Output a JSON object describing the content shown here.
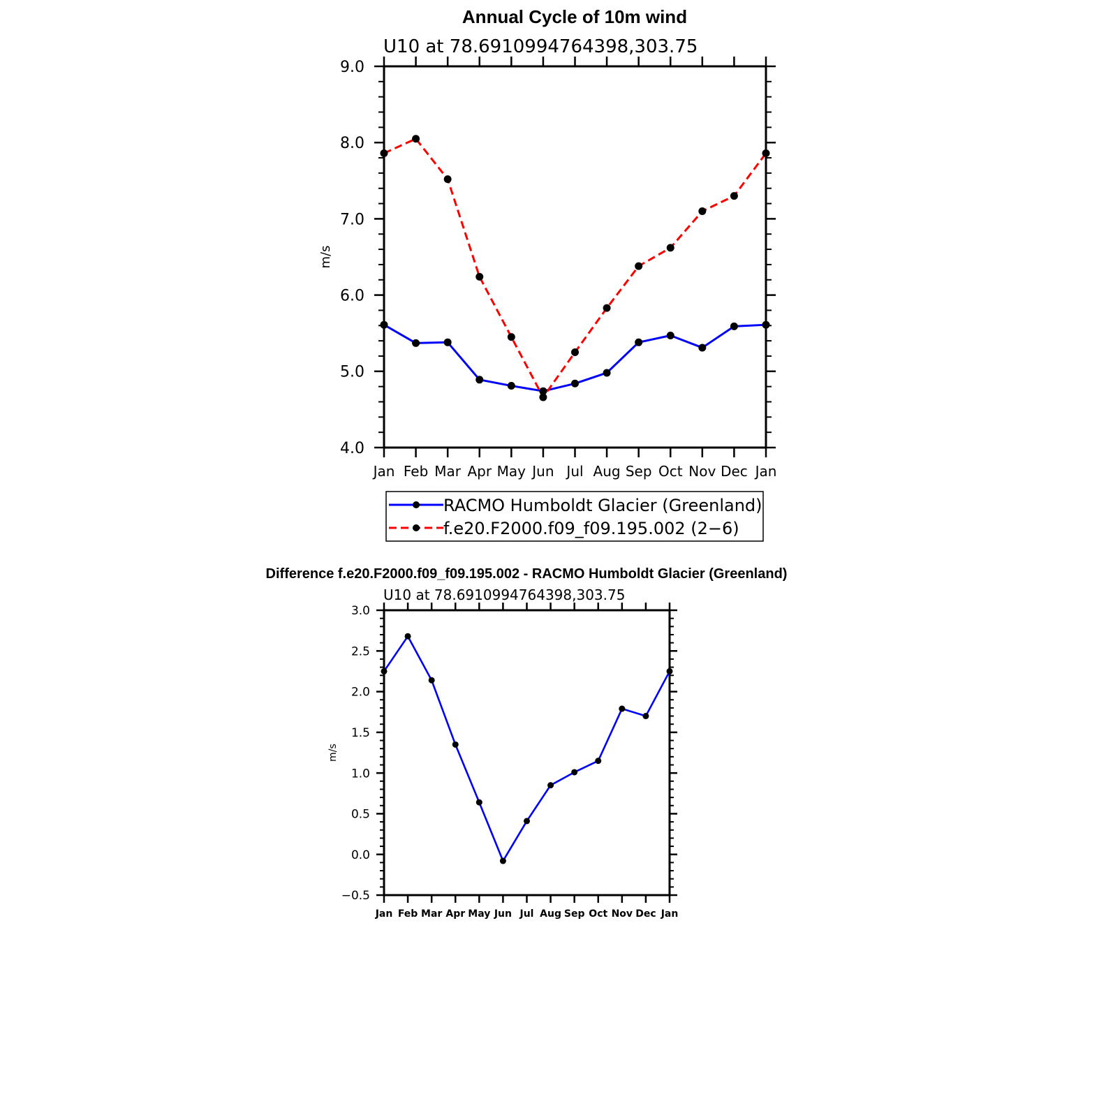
{
  "chart_data": [
    {
      "type": "line",
      "title": "Annual Cycle of 10m wind",
      "subtitle": "U10 at 78.6910994764398,303.75",
      "xlabel": "",
      "ylabel": "m/s",
      "categories": [
        "Jan",
        "Feb",
        "Mar",
        "Apr",
        "May",
        "Jun",
        "Jul",
        "Aug",
        "Sep",
        "Oct",
        "Nov",
        "Dec",
        "Jan"
      ],
      "ylim": [
        4.0,
        9.0
      ],
      "yticks": [
        "4.0",
        "5.0",
        "6.0",
        "7.0",
        "8.0",
        "9.0"
      ],
      "grid": false,
      "legend_position": "bottom",
      "series": [
        {
          "name": "RACMO Humboldt Glacier (Greenland)",
          "color": "#0000ff",
          "dash": "solid",
          "values": [
            5.61,
            5.37,
            5.38,
            4.89,
            4.81,
            4.74,
            4.84,
            4.98,
            5.38,
            5.47,
            5.31,
            5.59,
            5.61
          ]
        },
        {
          "name": "f.e20.F2000.f09_f09.195.002 (2−6)",
          "color": "#ff0000",
          "dash": "dashed",
          "values": [
            7.86,
            8.05,
            7.52,
            6.24,
            5.45,
            4.66,
            5.25,
            5.83,
            6.38,
            6.62,
            7.1,
            7.3,
            7.86
          ]
        }
      ]
    },
    {
      "type": "line",
      "title": "Difference f.e20.F2000.f09_f09.195.002 - RACMO Humboldt Glacier (Greenland)",
      "subtitle": "U10 at 78.6910994764398,303.75",
      "xlabel": "",
      "ylabel": "m/s",
      "categories": [
        "Jan",
        "Feb",
        "Mar",
        "Apr",
        "May",
        "Jun",
        "Jul",
        "Aug",
        "Sep",
        "Oct",
        "Nov",
        "Dec",
        "Jan"
      ],
      "ylim": [
        -0.5,
        3.0
      ],
      "yticks": [
        "−0.5",
        "0.0",
        "0.5",
        "1.0",
        "1.5",
        "2.0",
        "2.5",
        "3.0"
      ],
      "grid": false,
      "series": [
        {
          "name": "Difference",
          "color": "#0000ff",
          "dash": "solid",
          "values": [
            2.25,
            2.68,
            2.14,
            1.35,
            0.64,
            -0.08,
            0.41,
            0.85,
            1.01,
            1.15,
            1.79,
            1.7,
            2.25
          ]
        }
      ]
    }
  ]
}
